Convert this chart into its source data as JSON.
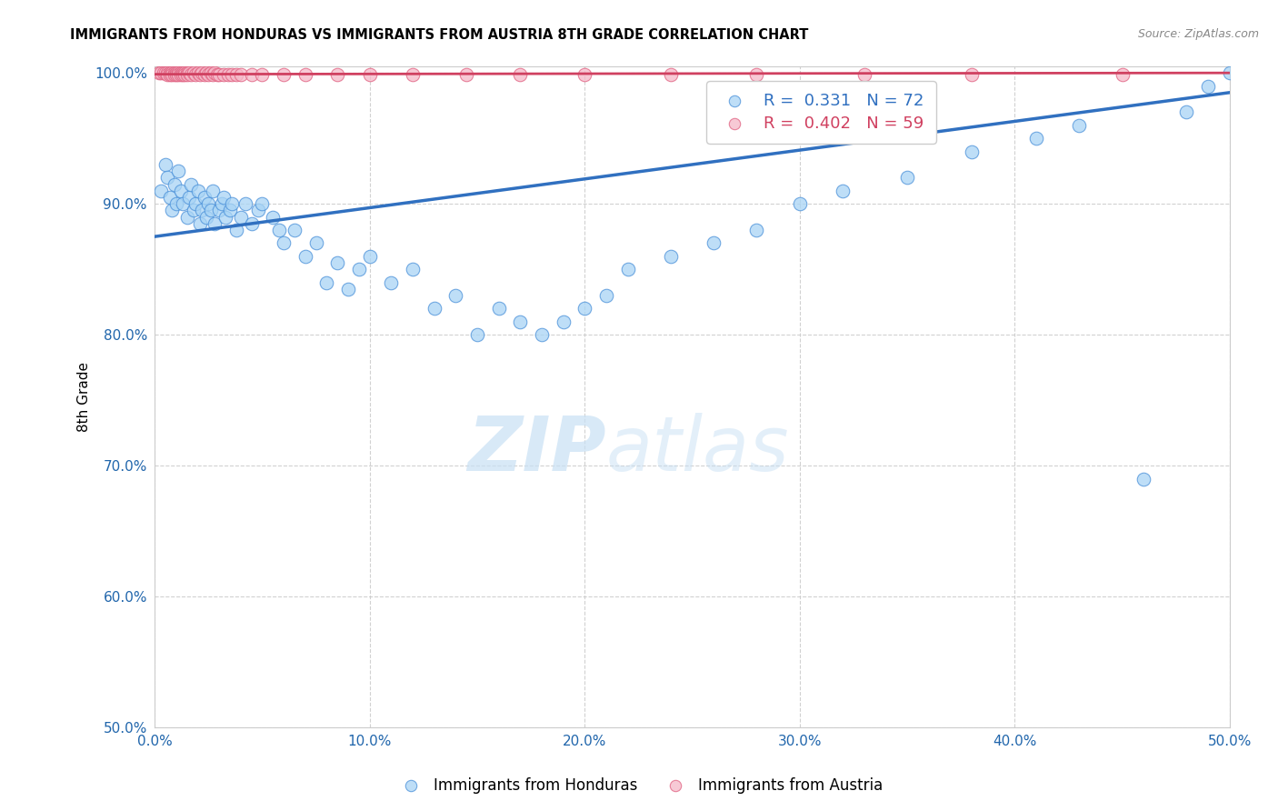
{
  "title": "IMMIGRANTS FROM HONDURAS VS IMMIGRANTS FROM AUSTRIA 8TH GRADE CORRELATION CHART",
  "source": "Source: ZipAtlas.com",
  "ylabel": "8th Grade",
  "xlim": [
    0.0,
    0.5
  ],
  "ylim": [
    0.5,
    1.005
  ],
  "xticks": [
    0.0,
    0.1,
    0.2,
    0.3,
    0.4,
    0.5
  ],
  "yticks": [
    0.5,
    0.6,
    0.7,
    0.8,
    0.9,
    1.0
  ],
  "ytick_labels": [
    "50.0%",
    "60.0%",
    "70.0%",
    "80.0%",
    "90.0%",
    "100.0%"
  ],
  "xtick_labels": [
    "0.0%",
    "10.0%",
    "20.0%",
    "30.0%",
    "40.0%",
    "50.0%"
  ],
  "legend_label1": "Immigrants from Honduras",
  "legend_label2": "Immigrants from Austria",
  "R1": 0.331,
  "N1": 72,
  "R2": 0.402,
  "N2": 59,
  "color_blue": "#a8d4f5",
  "color_pink": "#f5b8c8",
  "color_blue_dark": "#4a90d9",
  "color_pink_dark": "#e06080",
  "color_blue_line": "#3070c0",
  "color_pink_line": "#d04060",
  "watermark_zip": "ZIP",
  "watermark_atlas": "atlas",
  "blue_scatter_x": [
    0.003,
    0.005,
    0.006,
    0.007,
    0.008,
    0.009,
    0.01,
    0.011,
    0.012,
    0.013,
    0.015,
    0.016,
    0.017,
    0.018,
    0.019,
    0.02,
    0.021,
    0.022,
    0.023,
    0.024,
    0.025,
    0.026,
    0.027,
    0.028,
    0.03,
    0.031,
    0.032,
    0.033,
    0.035,
    0.036,
    0.038,
    0.04,
    0.042,
    0.045,
    0.048,
    0.05,
    0.055,
    0.058,
    0.06,
    0.065,
    0.07,
    0.075,
    0.08,
    0.085,
    0.09,
    0.095,
    0.1,
    0.11,
    0.12,
    0.13,
    0.14,
    0.15,
    0.16,
    0.17,
    0.18,
    0.19,
    0.2,
    0.21,
    0.22,
    0.24,
    0.26,
    0.28,
    0.3,
    0.32,
    0.35,
    0.38,
    0.41,
    0.43,
    0.46,
    0.48,
    0.49,
    0.5
  ],
  "blue_scatter_y": [
    0.91,
    0.93,
    0.92,
    0.905,
    0.895,
    0.915,
    0.9,
    0.925,
    0.91,
    0.9,
    0.89,
    0.905,
    0.915,
    0.895,
    0.9,
    0.91,
    0.885,
    0.895,
    0.905,
    0.89,
    0.9,
    0.895,
    0.91,
    0.885,
    0.895,
    0.9,
    0.905,
    0.89,
    0.895,
    0.9,
    0.88,
    0.89,
    0.9,
    0.885,
    0.895,
    0.9,
    0.89,
    0.88,
    0.87,
    0.88,
    0.86,
    0.87,
    0.84,
    0.855,
    0.835,
    0.85,
    0.86,
    0.84,
    0.85,
    0.82,
    0.83,
    0.8,
    0.82,
    0.81,
    0.8,
    0.81,
    0.82,
    0.83,
    0.85,
    0.86,
    0.87,
    0.88,
    0.9,
    0.91,
    0.92,
    0.94,
    0.95,
    0.96,
    0.69,
    0.97,
    0.99,
    1.0
  ],
  "pink_scatter_x": [
    0.002,
    0.003,
    0.004,
    0.005,
    0.006,
    0.006,
    0.007,
    0.007,
    0.008,
    0.008,
    0.009,
    0.009,
    0.01,
    0.01,
    0.011,
    0.011,
    0.012,
    0.012,
    0.013,
    0.013,
    0.014,
    0.014,
    0.015,
    0.015,
    0.016,
    0.017,
    0.018,
    0.019,
    0.02,
    0.021,
    0.022,
    0.023,
    0.024,
    0.025,
    0.026,
    0.027,
    0.028,
    0.029,
    0.03,
    0.032,
    0.034,
    0.036,
    0.038,
    0.04,
    0.045,
    0.05,
    0.06,
    0.07,
    0.085,
    0.1,
    0.12,
    0.145,
    0.17,
    0.2,
    0.24,
    0.28,
    0.33,
    0.38,
    0.45
  ],
  "pink_scatter_y": [
    1.0,
    1.0,
    1.0,
    1.0,
    1.0,
    0.999,
    1.0,
    0.999,
    1.0,
    0.999,
    1.0,
    0.999,
    1.0,
    0.999,
    1.0,
    0.999,
    1.0,
    0.999,
    1.0,
    0.999,
    1.0,
    0.999,
    1.0,
    0.999,
    1.0,
    0.999,
    1.0,
    0.999,
    1.0,
    0.999,
    1.0,
    0.999,
    1.0,
    0.999,
    1.0,
    0.999,
    1.0,
    0.999,
    0.999,
    0.999,
    0.999,
    0.999,
    0.999,
    0.999,
    0.999,
    0.999,
    0.999,
    0.999,
    0.999,
    0.999,
    0.999,
    0.999,
    0.999,
    0.999,
    0.999,
    0.999,
    0.999,
    0.999,
    0.999
  ],
  "blue_line_x": [
    0.0,
    0.5
  ],
  "blue_line_y": [
    0.875,
    0.985
  ],
  "pink_line_x": [
    0.0,
    0.5
  ],
  "pink_line_y": [
    0.999,
    1.0
  ]
}
